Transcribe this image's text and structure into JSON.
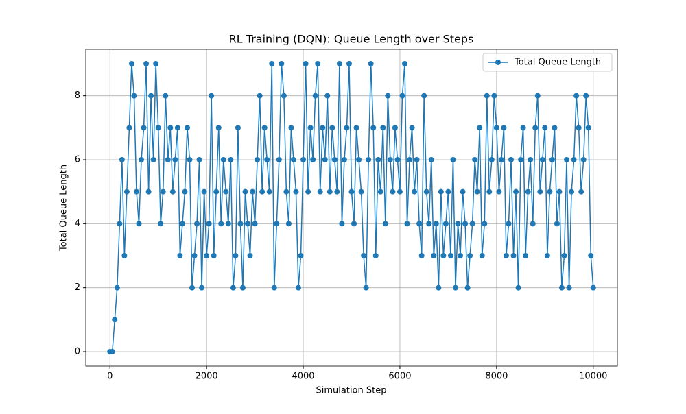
{
  "chart_data": {
    "type": "line",
    "title": "RL Training (DQN): Queue Length over Steps",
    "x_label": "Simulation Step",
    "y_label": "Total Queue Length",
    "x": [
      0,
      50,
      100,
      150,
      200,
      250,
      300,
      350,
      400,
      450,
      500,
      550,
      600,
      650,
      700,
      750,
      800,
      850,
      900,
      950,
      1000,
      1050,
      1100,
      1150,
      1200,
      1250,
      1300,
      1350,
      1400,
      1450,
      1500,
      1550,
      1600,
      1650,
      1700,
      1750,
      1800,
      1850,
      1900,
      1950,
      2000,
      2050,
      2100,
      2150,
      2200,
      2250,
      2300,
      2350,
      2400,
      2450,
      2500,
      2550,
      2600,
      2650,
      2700,
      2750,
      2800,
      2850,
      2900,
      2950,
      3000,
      3050,
      3100,
      3150,
      3200,
      3250,
      3300,
      3350,
      3400,
      3450,
      3500,
      3550,
      3600,
      3650,
      3700,
      3750,
      3800,
      3850,
      3900,
      3950,
      4000,
      4050,
      4100,
      4150,
      4200,
      4250,
      4300,
      4350,
      4400,
      4450,
      4500,
      4550,
      4600,
      4650,
      4700,
      4750,
      4800,
      4850,
      4900,
      4950,
      5000,
      5050,
      5100,
      5150,
      5200,
      5250,
      5300,
      5350,
      5400,
      5450,
      5500,
      5550,
      5600,
      5650,
      5700,
      5750,
      5800,
      5850,
      5900,
      5950,
      6000,
      6050,
      6100,
      6150,
      6200,
      6250,
      6300,
      6350,
      6400,
      6450,
      6500,
      6550,
      6600,
      6650,
      6700,
      6750,
      6800,
      6850,
      6900,
      6950,
      7000,
      7050,
      7100,
      7150,
      7200,
      7250,
      7300,
      7350,
      7400,
      7450,
      7500,
      7550,
      7600,
      7650,
      7700,
      7750,
      7800,
      7850,
      7900,
      7950,
      8000,
      8050,
      8100,
      8150,
      8200,
      8250,
      8300,
      8350,
      8400,
      8450,
      8500,
      8550,
      8600,
      8650,
      8700,
      8750,
      8800,
      8850,
      8900,
      8950,
      9000,
      9050,
      9100,
      9150,
      9200,
      9250,
      9300,
      9350,
      9400,
      9450,
      9500,
      9550,
      9600,
      9650,
      9700,
      9750,
      9800,
      9850,
      9900,
      9950,
      10000
    ],
    "series": [
      {
        "name": "Total Queue Length",
        "color": "#1f77b4",
        "values": [
          0,
          0,
          1,
          2,
          4,
          6,
          3,
          5,
          7,
          9,
          8,
          5,
          4,
          6,
          7,
          9,
          5,
          8,
          6,
          9,
          7,
          4,
          5,
          8,
          6,
          7,
          5,
          6,
          7,
          3,
          4,
          5,
          7,
          6,
          2,
          3,
          4,
          6,
          2,
          5,
          3,
          4,
          8,
          3,
          5,
          7,
          4,
          6,
          5,
          4,
          6,
          2,
          3,
          7,
          4,
          2,
          5,
          4,
          3,
          5,
          4,
          6,
          8,
          5,
          7,
          6,
          5,
          9,
          2,
          4,
          6,
          9,
          8,
          5,
          4,
          7,
          6,
          5,
          2,
          3,
          6,
          9,
          5,
          7,
          6,
          8,
          9,
          5,
          7,
          6,
          8,
          5,
          7,
          6,
          5,
          9,
          4,
          6,
          7,
          9,
          5,
          4,
          7,
          6,
          5,
          3,
          2,
          6,
          9,
          7,
          3,
          6,
          5,
          7,
          4,
          8,
          6,
          5,
          7,
          6,
          5,
          8,
          9,
          4,
          6,
          7,
          5,
          6,
          4,
          3,
          8,
          5,
          4,
          6,
          3,
          4,
          2,
          5,
          3,
          4,
          5,
          3,
          6,
          2,
          4,
          3,
          5,
          4,
          2,
          3,
          4,
          6,
          5,
          7,
          3,
          4,
          8,
          5,
          6,
          8,
          7,
          5,
          6,
          7,
          3,
          4,
          6,
          3,
          5,
          2,
          6,
          7,
          3,
          5,
          6,
          4,
          7,
          8,
          5,
          6,
          7,
          3,
          5,
          6,
          7,
          4,
          5,
          2,
          3,
          6,
          2,
          5,
          6,
          8,
          7,
          5,
          6,
          8,
          7,
          3,
          2
        ]
      }
    ],
    "xlim": [
      -500,
      10500
    ],
    "ylim": [
      -0.45,
      9.45
    ],
    "xticks": [
      0,
      2000,
      4000,
      6000,
      8000,
      10000
    ],
    "yticks": [
      0,
      2,
      4,
      6,
      8
    ],
    "grid": true,
    "legend": "upper right"
  }
}
